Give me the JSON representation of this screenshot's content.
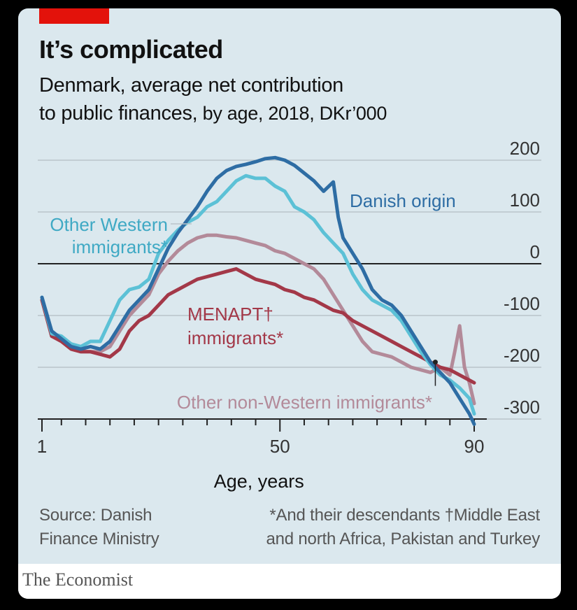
{
  "header": {
    "title": "It’s complicated",
    "subtitle_line1": "Denmark, average net contribution",
    "subtitle_line2_main": "to public finances,",
    "subtitle_line2_light": " by age, 2018, DKr’000"
  },
  "colors": {
    "accent": "#e3120b",
    "background": "#dbe8ee",
    "danish_origin": "#2e6da4",
    "other_western": "#5cc1d6",
    "menapt": "#a33848",
    "other_non_western": "#b38a99"
  },
  "chart_data": {
    "type": "line",
    "title": "It’s complicated",
    "xlabel": "Age, years",
    "ylabel": "DKr’000",
    "xlim": [
      1,
      90
    ],
    "ylim": [
      -300,
      200
    ],
    "x_tick_labels": [
      "1",
      "50",
      "90"
    ],
    "y_tick_labels": [
      "200",
      "100",
      "0",
      "-100",
      "-200",
      "-300"
    ],
    "x_ticks": [
      1,
      50,
      90
    ],
    "y_ticks": [
      200,
      100,
      0,
      -100,
      -200,
      -300
    ],
    "series": [
      {
        "name": "Danish origin",
        "label_text": "Danish origin",
        "x": [
          1,
          3,
          5,
          7,
          9,
          11,
          13,
          15,
          17,
          19,
          21,
          23,
          25,
          27,
          29,
          31,
          33,
          35,
          37,
          39,
          41,
          43,
          45,
          47,
          49,
          51,
          53,
          55,
          57,
          59,
          61,
          62,
          63,
          65,
          67,
          69,
          71,
          73,
          75,
          77,
          79,
          81,
          83,
          85,
          87,
          89,
          90
        ],
        "values": [
          -65,
          -130,
          -145,
          -160,
          -165,
          -160,
          -165,
          -150,
          -120,
          -90,
          -70,
          -50,
          -10,
          30,
          60,
          85,
          110,
          140,
          165,
          180,
          188,
          192,
          197,
          203,
          205,
          200,
          190,
          175,
          160,
          140,
          158,
          90,
          50,
          20,
          -10,
          -50,
          -70,
          -80,
          -100,
          -130,
          -160,
          -190,
          -210,
          -230,
          -260,
          -290,
          -310
        ]
      },
      {
        "name": "Other Western immigrants*",
        "label_text": "Other Western",
        "label_text2": "immigrants*",
        "x": [
          1,
          3,
          5,
          7,
          9,
          11,
          13,
          15,
          17,
          19,
          21,
          23,
          25,
          27,
          29,
          31,
          33,
          35,
          37,
          39,
          41,
          43,
          45,
          47,
          49,
          51,
          53,
          55,
          57,
          59,
          61,
          63,
          65,
          67,
          69,
          71,
          73,
          75,
          77,
          79,
          81,
          83,
          85,
          87,
          89,
          90
        ],
        "values": [
          -65,
          -135,
          -140,
          -155,
          -160,
          -150,
          -150,
          -110,
          -70,
          -50,
          -45,
          -30,
          20,
          45,
          65,
          80,
          90,
          110,
          120,
          140,
          160,
          170,
          165,
          165,
          150,
          140,
          110,
          100,
          85,
          60,
          40,
          20,
          -20,
          -50,
          -70,
          -80,
          -90,
          -110,
          -140,
          -170,
          -195,
          -215,
          -225,
          -240,
          -260,
          -290
        ]
      },
      {
        "name": "MENAPT† immigrants*",
        "label_text": "MENAPT†",
        "label_text2": "immigrants*",
        "x": [
          1,
          3,
          5,
          7,
          9,
          11,
          13,
          15,
          17,
          19,
          21,
          23,
          25,
          27,
          29,
          31,
          33,
          35,
          37,
          39,
          41,
          43,
          45,
          47,
          49,
          51,
          53,
          55,
          57,
          59,
          61,
          63,
          65,
          67,
          69,
          71,
          73,
          75,
          77,
          79,
          81,
          83,
          85,
          87,
          89,
          90
        ],
        "values": [
          -70,
          -140,
          -150,
          -165,
          -170,
          -170,
          -175,
          -180,
          -165,
          -130,
          -110,
          -100,
          -80,
          -60,
          -50,
          -40,
          -30,
          -25,
          -20,
          -15,
          -10,
          -20,
          -30,
          -35,
          -40,
          -50,
          -55,
          -65,
          -70,
          -80,
          -90,
          -95,
          -110,
          -120,
          -130,
          -140,
          -150,
          -160,
          -170,
          -180,
          -190,
          -200,
          -205,
          -215,
          -225,
          -230
        ]
      },
      {
        "name": "Other non-Western immigrants*",
        "label_text": "Other non-Western immigrants*",
        "x": [
          1,
          3,
          5,
          7,
          9,
          11,
          13,
          15,
          17,
          19,
          21,
          23,
          25,
          27,
          29,
          31,
          33,
          35,
          37,
          39,
          41,
          43,
          45,
          47,
          49,
          51,
          53,
          55,
          57,
          59,
          61,
          63,
          65,
          67,
          69,
          71,
          73,
          75,
          77,
          79,
          81,
          83,
          85,
          86,
          87,
          88,
          89,
          90
        ],
        "values": [
          -70,
          -140,
          -145,
          -160,
          -170,
          -170,
          -170,
          -160,
          -130,
          -100,
          -80,
          -60,
          -20,
          5,
          25,
          40,
          50,
          55,
          55,
          52,
          50,
          45,
          40,
          35,
          25,
          20,
          10,
          0,
          -10,
          -30,
          -60,
          -90,
          -120,
          -150,
          -170,
          -175,
          -180,
          -190,
          -200,
          -205,
          -210,
          -200,
          -215,
          -170,
          -120,
          -200,
          -230,
          -270
        ]
      }
    ],
    "annotation_marker_age": 82,
    "annotation_marker_value": -190
  },
  "source": {
    "line1": "Source: Danish",
    "line2": "Finance Ministry"
  },
  "notes": {
    "line1": "*And their descendants  †Middle East",
    "line2": "and north Africa, Pakistan and Turkey"
  },
  "brand": "The Economist"
}
